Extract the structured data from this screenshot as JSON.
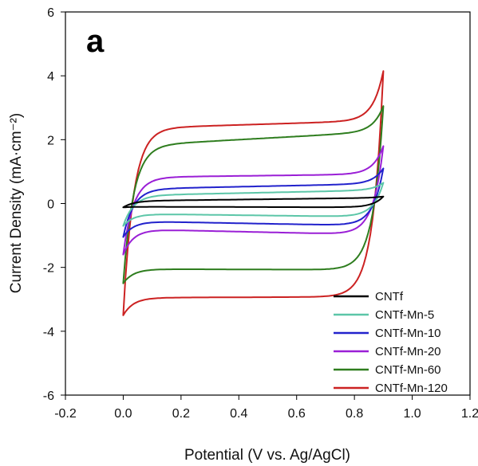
{
  "chart_data": {
    "type": "line",
    "panel_label": "a",
    "xlabel": "Potential (V vs. Ag/AgCl)",
    "ylabel": "Current Density (mA·cm⁻²)",
    "xlim": [
      -0.2,
      1.2
    ],
    "ylim": [
      -6,
      6
    ],
    "xticks": [
      -0.2,
      0.0,
      0.2,
      0.4,
      0.6,
      0.8,
      1.0,
      1.2
    ],
    "xtick_labels": [
      "-0.2",
      "0.0",
      "0.2",
      "0.4",
      "0.6",
      "0.8",
      "1.0",
      "1.2"
    ],
    "yticks": [
      -6,
      -4,
      -2,
      0,
      2,
      4,
      6
    ],
    "ytick_labels": [
      "-6",
      "-4",
      "-2",
      "0",
      "2",
      "4",
      "6"
    ],
    "grid": false,
    "legend_position": "bottom-right",
    "series": [
      {
        "name": "CNTf",
        "color": "#000000",
        "x_range": [
          0.0,
          0.9
        ],
        "anodic_plateau": [
          0.08,
          0.18
        ],
        "cathodic_plateau": [
          -0.1,
          -0.12
        ],
        "max": 0.22,
        "min": -0.12
      },
      {
        "name": "CNTf-Mn-5",
        "color": "#5cc6a8",
        "x_range": [
          0.0,
          0.9
        ],
        "anodic_plateau": [
          0.25,
          0.42
        ],
        "cathodic_plateau": [
          -0.32,
          -0.42
        ],
        "max": 0.65,
        "min": -0.7
      },
      {
        "name": "CNTf-Mn-10",
        "color": "#2222cc",
        "x_range": [
          0.0,
          0.9
        ],
        "anodic_plateau": [
          0.45,
          0.62
        ],
        "cathodic_plateau": [
          -0.55,
          -0.7
        ],
        "max": 1.1,
        "min": -1.05
      },
      {
        "name": "CNTf-Mn-20",
        "color": "#9a1fd6",
        "x_range": [
          0.0,
          0.9
        ],
        "anodic_plateau": [
          0.82,
          0.92
        ],
        "cathodic_plateau": [
          -0.8,
          -0.98
        ],
        "max": 1.8,
        "min": -1.6
      },
      {
        "name": "CNTf-Mn-60",
        "color": "#2e7d1e",
        "x_range": [
          0.0,
          0.9
        ],
        "anodic_plateau": [
          1.8,
          2.25
        ],
        "cathodic_plateau": [
          -2.05,
          -2.08
        ],
        "max": 3.05,
        "min": -2.5
      },
      {
        "name": "CNTf-Mn-120",
        "color": "#cc2222",
        "x_range": [
          0.0,
          0.9
        ],
        "anodic_plateau": [
          2.35,
          2.6
        ],
        "cathodic_plateau": [
          -2.95,
          -2.92
        ],
        "max": 4.15,
        "min": -3.5
      }
    ]
  }
}
